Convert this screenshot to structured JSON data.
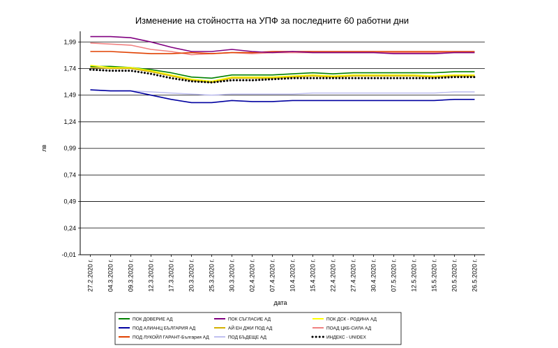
{
  "chart_data": {
    "type": "line",
    "title": "Изменение на стойността на УПФ за последните 60 работни дни",
    "xlabel": "дата",
    "ylabel": "лв",
    "ylim": [
      -0.01,
      2.09
    ],
    "yticks": [
      "-0,01",
      "0,24",
      "0,49",
      "0,74",
      "0,99",
      "1,24",
      "1,49",
      "1,74",
      "1,99"
    ],
    "ytick_values": [
      -0.01,
      0.24,
      0.49,
      0.74,
      0.99,
      1.24,
      1.49,
      1.74,
      1.99
    ],
    "grid": true,
    "legend_position": "bottom",
    "x": [
      "27.2.2020 г.",
      "04.3.2020 г.",
      "09.3.2020 г.",
      "12.3.2020 г.",
      "17.3.2020 г.",
      "20.3.2020 г.",
      "25.3.2020 г.",
      "30.3.2020 г.",
      "02.4.2020 г.",
      "07.4.2020 г.",
      "10.4.2020 г.",
      "15.4.2020 г.",
      "22.4.2020 г.",
      "27.4.2020 г.",
      "30.4.2020 г.",
      "07.5.2020 г.",
      "12.5.2020 г.",
      "15.5.2020 г.",
      "20.5.2020 г.",
      "26.5.2020 г."
    ],
    "series": [
      {
        "name": "ПОК ДОВЕРИЕ АД",
        "color": "#008000",
        "style": "solid",
        "values": [
          1.76,
          1.76,
          1.75,
          1.73,
          1.7,
          1.66,
          1.65,
          1.68,
          1.68,
          1.68,
          1.69,
          1.7,
          1.69,
          1.7,
          1.7,
          1.7,
          1.7,
          1.7,
          1.71,
          1.71
        ]
      },
      {
        "name": "ПОК СЪГЛАСИЕ АД",
        "color": "#800080",
        "style": "solid",
        "values": [
          2.04,
          2.04,
          2.03,
          1.99,
          1.94,
          1.9,
          1.9,
          1.92,
          1.9,
          1.89,
          1.9,
          1.89,
          1.89,
          1.89,
          1.89,
          1.88,
          1.88,
          1.88,
          1.89,
          1.89
        ]
      },
      {
        "name": "ПОК ДСК - РОДИНА АД",
        "color": "#ffff00",
        "style": "solid",
        "values": [
          1.77,
          1.75,
          1.75,
          1.72,
          1.68,
          1.64,
          1.62,
          1.66,
          1.66,
          1.66,
          1.67,
          1.68,
          1.67,
          1.68,
          1.68,
          1.68,
          1.68,
          1.67,
          1.68,
          1.68
        ]
      },
      {
        "name": "ПОД АЛИАНЦ БЪЛГАРИЯ АД",
        "color": "#0000a0",
        "style": "solid",
        "values": [
          1.54,
          1.53,
          1.53,
          1.49,
          1.45,
          1.42,
          1.42,
          1.44,
          1.43,
          1.43,
          1.44,
          1.44,
          1.44,
          1.44,
          1.44,
          1.44,
          1.44,
          1.44,
          1.45,
          1.45
        ]
      },
      {
        "name": "АЙ ЕН ДЖИ ПОД АД",
        "color": "#d4b000",
        "style": "solid",
        "values": [
          1.75,
          1.74,
          1.74,
          1.71,
          1.67,
          1.63,
          1.61,
          1.65,
          1.65,
          1.65,
          1.66,
          1.67,
          1.66,
          1.67,
          1.67,
          1.67,
          1.67,
          1.66,
          1.67,
          1.67
        ]
      },
      {
        "name": "ПОАД ЦКБ-СИЛА АД",
        "color": "#f08080",
        "style": "solid",
        "values": [
          1.98,
          1.97,
          1.96,
          1.92,
          1.9,
          1.87,
          1.88,
          1.89,
          1.88,
          1.89,
          1.89,
          1.89,
          1.89,
          1.89,
          1.89,
          1.89,
          1.89,
          1.89,
          1.89,
          1.89
        ]
      },
      {
        "name": "ПОД ЛУКОЙЛ ГАРАНТ-България АД",
        "color": "#e04000",
        "style": "solid",
        "values": [
          1.9,
          1.9,
          1.89,
          1.88,
          1.88,
          1.89,
          1.88,
          1.89,
          1.89,
          1.9,
          1.9,
          1.9,
          1.9,
          1.9,
          1.9,
          1.9,
          1.9,
          1.9,
          1.9,
          1.9
        ]
      },
      {
        "name": "ПОД БЪДЕЩЕ АД",
        "color": "#c0c0f0",
        "style": "solid",
        "values": [
          1.54,
          1.53,
          1.53,
          1.52,
          1.51,
          1.5,
          1.49,
          1.5,
          1.5,
          1.5,
          1.5,
          1.51,
          1.51,
          1.51,
          1.51,
          1.51,
          1.51,
          1.51,
          1.52,
          1.52
        ]
      },
      {
        "name": "ИНДЕКС - UNIDEX",
        "color": "#000000",
        "style": "dotted",
        "values": [
          1.73,
          1.72,
          1.72,
          1.69,
          1.65,
          1.62,
          1.61,
          1.63,
          1.63,
          1.64,
          1.65,
          1.65,
          1.65,
          1.65,
          1.65,
          1.65,
          1.65,
          1.65,
          1.66,
          1.66
        ]
      }
    ]
  }
}
